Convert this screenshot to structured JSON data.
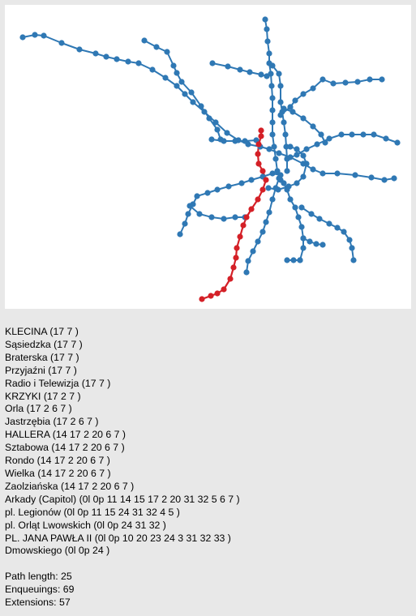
{
  "colors": {
    "network": "#2f78b4",
    "route": "#d42027",
    "panel_bg": "#ffffff",
    "page_bg": "#e8e8e8"
  },
  "route_stops": [
    {
      "name": "KLECINA",
      "lines": "(17 7 )"
    },
    {
      "name": "Sąsiedzka",
      "lines": "(17 7 )"
    },
    {
      "name": "Braterska",
      "lines": "(17 7 )"
    },
    {
      "name": "Przyjaźni",
      "lines": "(17 7 )"
    },
    {
      "name": "Radio i Telewizja",
      "lines": "(17 7 )"
    },
    {
      "name": "KRZYKI",
      "lines": "(17 2 7 )"
    },
    {
      "name": "Orla",
      "lines": "(17 2 6 7 )"
    },
    {
      "name": "Jastrzębia",
      "lines": "(17 2 6 7 )"
    },
    {
      "name": "HALLERA",
      "lines": "(14 17 2 20 6 7 )"
    },
    {
      "name": "Sztabowa",
      "lines": "(14 17 2 20 6 7 )"
    },
    {
      "name": "Rondo",
      "lines": "(14 17 2 20 6 7 )"
    },
    {
      "name": "Wielka",
      "lines": "(14 17 2 20 6 7 )"
    },
    {
      "name": "Zaolziańska",
      "lines": "(14 17 2 20 6 7 )"
    },
    {
      "name": "Arkady (Capitol)",
      "lines": "(0l 0p 11 14 15 17 2 20 31 32 5 6 7 )"
    },
    {
      "name": "pl. Legionów",
      "lines": "(0l 0p 11 15 24 31 32 4 5 )"
    },
    {
      "name": "pl. Orląt Lwowskich",
      "lines": "(0l 0p 24 31 32 )"
    },
    {
      "name": "PL. JANA PAWŁA II",
      "lines": "(0l 0p 10 20 23 24 3 31 32 33 )"
    },
    {
      "name": "Dmowskiego",
      "lines": "(0l 0p 24 )"
    }
  ],
  "stats": {
    "path_length": "Path length: 25",
    "enqueuings": "Enqueuings: 69",
    "extensions": "Extensions: 57"
  }
}
